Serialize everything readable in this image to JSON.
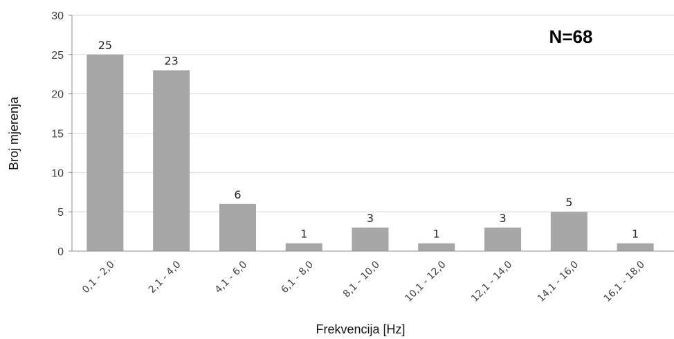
{
  "chart_data": {
    "type": "bar",
    "categories": [
      "0,1 - 2,0",
      "2,1 - 4,0",
      "4,1 - 6,0",
      "6,1 - 8,0",
      "8,1 - 10,0",
      "10,1 - 12,0",
      "12,1 - 14,0",
      "14,1 - 16,0",
      "16,1 - 18,0"
    ],
    "values": [
      25,
      23,
      6,
      1,
      3,
      1,
      3,
      5,
      1
    ],
    "data_labels": [
      "25",
      "23",
      "6",
      "1",
      "3",
      "1",
      "3",
      "5",
      "1"
    ],
    "xlabel": "Frekvencija [Hz]",
    "ylabel": "Broj mjerenja",
    "ylim": [
      0,
      30
    ],
    "yticks": [
      0,
      5,
      10,
      15,
      20,
      25,
      30
    ],
    "annotation": "N=68",
    "grid": true,
    "colors": {
      "bar": "#a6a6a6",
      "grid": "#d9d9d9",
      "axis": "#8c8c8c"
    }
  }
}
